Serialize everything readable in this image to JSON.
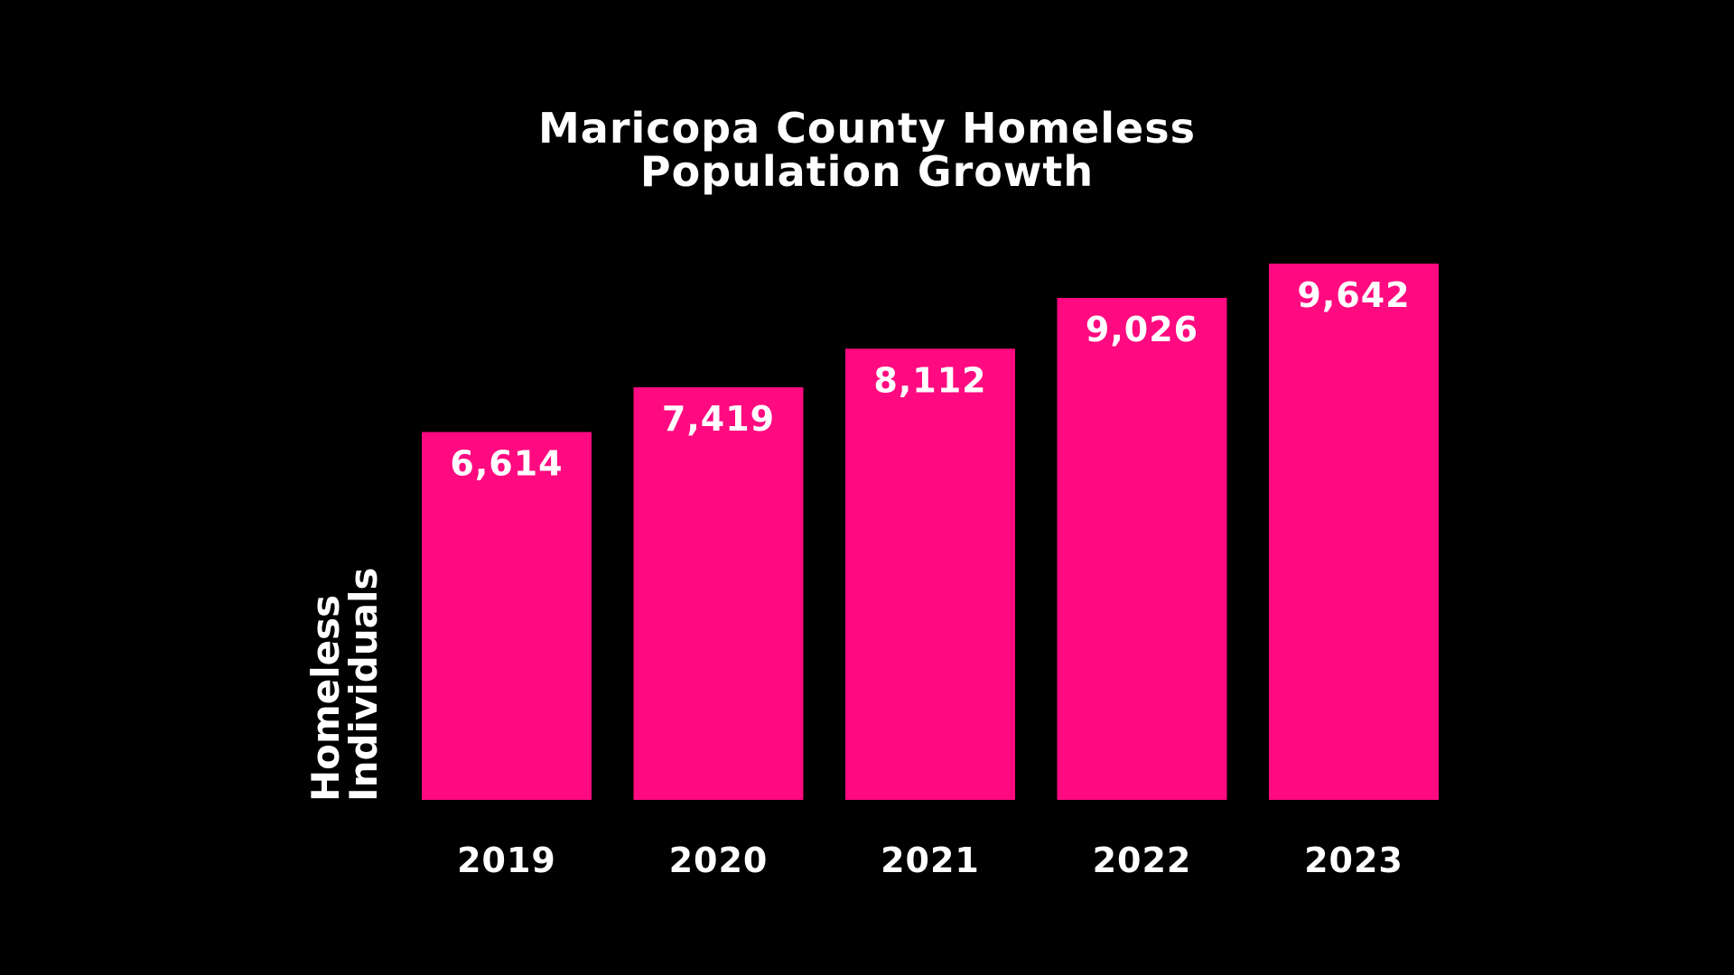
{
  "chart_data": {
    "type": "bar",
    "title_lines": [
      "Maricopa County Homeless",
      "Population Growth"
    ],
    "categories": [
      "2019",
      "2020",
      "2021",
      "2022",
      "2023"
    ],
    "values": [
      6614,
      7419,
      8112,
      9026,
      9642
    ],
    "value_labels": [
      "6,614",
      "7,419",
      "8,112",
      "9,026",
      "9,642"
    ],
    "ylabel_lines": [
      "Homeless",
      "Individuals"
    ],
    "xlabel": "",
    "ylim": [
      0,
      9642
    ],
    "grid": false,
    "legend": "none",
    "colors": {
      "background": "#000000",
      "bar": "#FF0A80",
      "text": "#FFFFFF"
    }
  }
}
